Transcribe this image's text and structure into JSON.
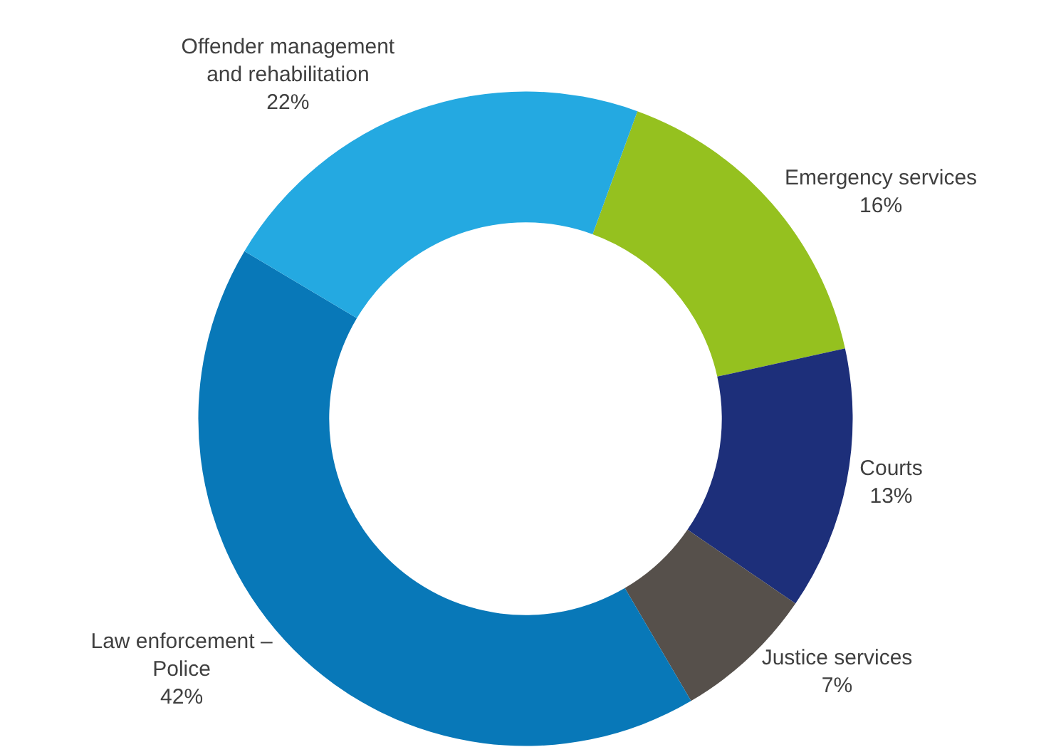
{
  "chart_data": {
    "type": "donut",
    "categories": [
      "Emergency services",
      "Courts",
      "Justice services",
      "Law enforcement – Police",
      "Offender management and rehabilitation"
    ],
    "values": [
      16,
      13,
      7,
      42,
      22
    ],
    "colors": [
      "#95c11f",
      "#1d2f7a",
      "#56504b",
      "#0878b8",
      "#24a9e1"
    ],
    "value_labels": [
      "16%",
      "13%",
      "7%",
      "42%",
      "22%"
    ],
    "legend": false
  }
}
